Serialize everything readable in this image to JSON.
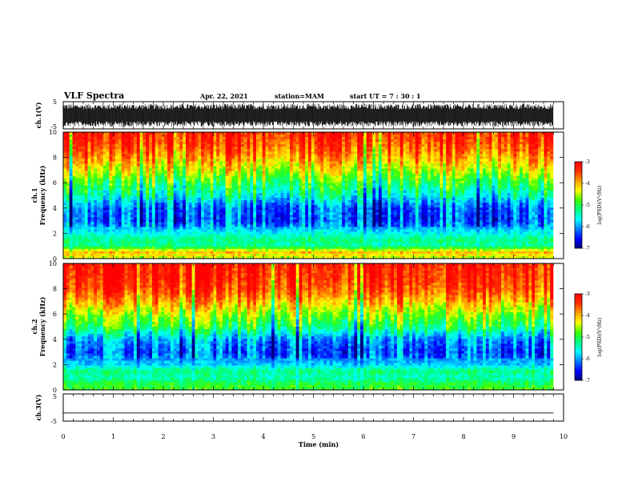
{
  "header": {
    "title": "VLF Spectra",
    "date": "Apr. 22, 2021",
    "station": "station=MAM",
    "start": "start  UT  =   7 : 30 : 1"
  },
  "colors": {
    "waveform": "#000000",
    "colormap": [
      "#000080",
      "#0000ff",
      "#0080ff",
      "#00ffff",
      "#00ff80",
      "#40ff00",
      "#ffff00",
      "#ffa000",
      "#ff3000",
      "#ff0000"
    ]
  },
  "chart_data": [
    {
      "type": "line",
      "panel": "ch1-waveform",
      "ylabel": "ch.1(V)",
      "ylim": [
        -5,
        5
      ],
      "yticks": [
        "5",
        "-5"
      ],
      "xlim": [
        0,
        10
      ],
      "description_values": {
        "typical_amplitude_V": 4,
        "baseline_V": 0
      }
    },
    {
      "type": "heatmap",
      "panel": "ch1-spectrogram",
      "ylabel": "ch.1\nFrequency  (kHz)",
      "ylabel_lines": [
        "ch.1",
        "Frequency  (kHz)"
      ],
      "xlim": [
        0,
        10
      ],
      "ylim": [
        0,
        10
      ],
      "yticks": [
        "0",
        "2",
        "4",
        "6",
        "8",
        "10"
      ],
      "zlim": [
        -7,
        -3
      ],
      "colorbar_label": "log(PSD)(V²/Hz)",
      "colorbar_ticks": [
        "-3",
        "-4",
        "-5",
        "-6",
        "-7"
      ],
      "profile_khz_log_psd": [
        [
          0.0,
          -4.5
        ],
        [
          0.5,
          -4.0
        ],
        [
          1.0,
          -5.3
        ],
        [
          1.5,
          -5.2
        ],
        [
          2.0,
          -5.6
        ],
        [
          3.0,
          -6.2
        ],
        [
          4.0,
          -6.1
        ],
        [
          5.0,
          -5.4
        ],
        [
          6.0,
          -4.9
        ],
        [
          7.0,
          -4.3
        ],
        [
          8.0,
          -3.8
        ],
        [
          9.0,
          -3.4
        ],
        [
          10.0,
          -3.2
        ]
      ]
    },
    {
      "type": "heatmap",
      "panel": "ch2-spectrogram",
      "ylabel": "ch.2\nFrequency  (kHz)",
      "ylabel_lines": [
        "ch.2",
        "Frequency  (kHz)"
      ],
      "xlim": [
        0,
        10
      ],
      "ylim": [
        0,
        10
      ],
      "yticks": [
        "0",
        "2",
        "4",
        "6",
        "8",
        "10"
      ],
      "zlim": [
        -7,
        -3
      ],
      "colorbar_label": "log(PSD)(V²/Hz)",
      "colorbar_ticks": [
        "-3",
        "-4",
        "-5",
        "-6",
        "-7"
      ],
      "profile_khz_log_psd": [
        [
          0.0,
          -4.8
        ],
        [
          0.5,
          -5.0
        ],
        [
          1.0,
          -5.4
        ],
        [
          1.5,
          -5.2
        ],
        [
          2.0,
          -5.8
        ],
        [
          3.0,
          -6.2
        ],
        [
          4.0,
          -5.9
        ],
        [
          5.0,
          -5.0
        ],
        [
          6.0,
          -4.5
        ],
        [
          7.0,
          -3.9
        ],
        [
          8.0,
          -3.4
        ],
        [
          9.0,
          -3.2
        ],
        [
          10.0,
          -3.1
        ]
      ]
    },
    {
      "type": "line",
      "panel": "ch3-waveform",
      "ylabel": "ch.3(V)",
      "ylim": [
        -5,
        5
      ],
      "yticks": [
        "5",
        "-5"
      ],
      "xlim": [
        0,
        10
      ],
      "xlabel": "Time  (min)",
      "xticks": [
        "0",
        "1",
        "2",
        "3",
        "4",
        "5",
        "6",
        "7",
        "8",
        "9",
        "10"
      ],
      "series": [
        {
          "x": [
            0,
            9.8
          ],
          "y": [
            -2,
            -2
          ]
        }
      ]
    }
  ]
}
